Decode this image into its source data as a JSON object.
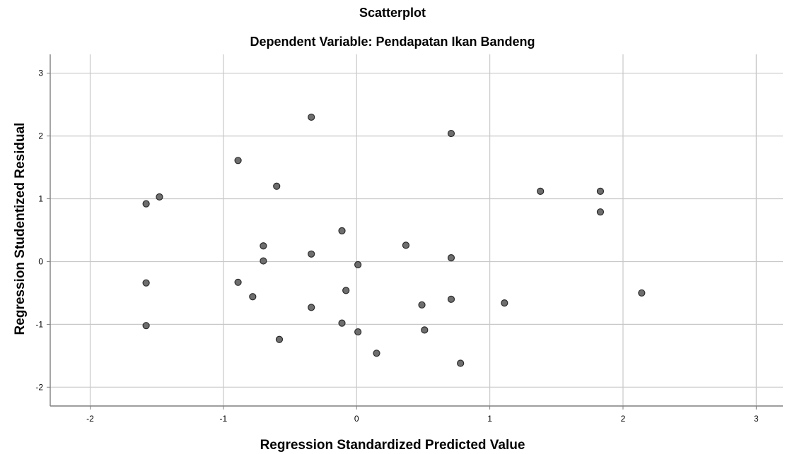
{
  "chart_data": {
    "type": "scatter",
    "title": "Scatterplot",
    "subtitle": "Dependent Variable: Pendapatan Ikan Bandeng",
    "xlabel": "Regression Standardized Predicted Value",
    "ylabel": "Regression Studentized Residual",
    "xlim": [
      -2.3,
      3.2
    ],
    "ylim": [
      -2.3,
      3.3
    ],
    "xticks": [
      -2,
      -1,
      0,
      1,
      2,
      3
    ],
    "yticks": [
      -2,
      -1,
      0,
      1,
      2,
      3
    ],
    "grid": true,
    "marker_color": "#6e6e6e",
    "points": [
      {
        "x": -1.58,
        "y": 0.92
      },
      {
        "x": -1.48,
        "y": 1.03
      },
      {
        "x": -1.58,
        "y": -0.34
      },
      {
        "x": -1.58,
        "y": -1.02
      },
      {
        "x": -0.89,
        "y": 1.61
      },
      {
        "x": -0.89,
        "y": -0.33
      },
      {
        "x": -0.78,
        "y": -0.56
      },
      {
        "x": -0.7,
        "y": 0.25
      },
      {
        "x": -0.7,
        "y": 0.01
      },
      {
        "x": -0.6,
        "y": 1.2
      },
      {
        "x": -0.58,
        "y": -1.24
      },
      {
        "x": -0.34,
        "y": 2.3
      },
      {
        "x": -0.34,
        "y": 0.12
      },
      {
        "x": -0.34,
        "y": -0.73
      },
      {
        "x": -0.11,
        "y": 0.49
      },
      {
        "x": -0.11,
        "y": -0.98
      },
      {
        "x": -0.08,
        "y": -0.46
      },
      {
        "x": 0.01,
        "y": -0.05
      },
      {
        "x": 0.01,
        "y": -1.12
      },
      {
        "x": 0.15,
        "y": -1.46
      },
      {
        "x": 0.37,
        "y": 0.26
      },
      {
        "x": 0.49,
        "y": -0.69
      },
      {
        "x": 0.51,
        "y": -1.09
      },
      {
        "x": 0.71,
        "y": 2.04
      },
      {
        "x": 0.71,
        "y": 0.06
      },
      {
        "x": 0.71,
        "y": -0.6
      },
      {
        "x": 0.78,
        "y": -1.62
      },
      {
        "x": 1.11,
        "y": -0.66
      },
      {
        "x": 1.38,
        "y": 1.12
      },
      {
        "x": 1.83,
        "y": 1.12
      },
      {
        "x": 1.83,
        "y": 0.79
      },
      {
        "x": 2.14,
        "y": -0.5
      }
    ]
  }
}
